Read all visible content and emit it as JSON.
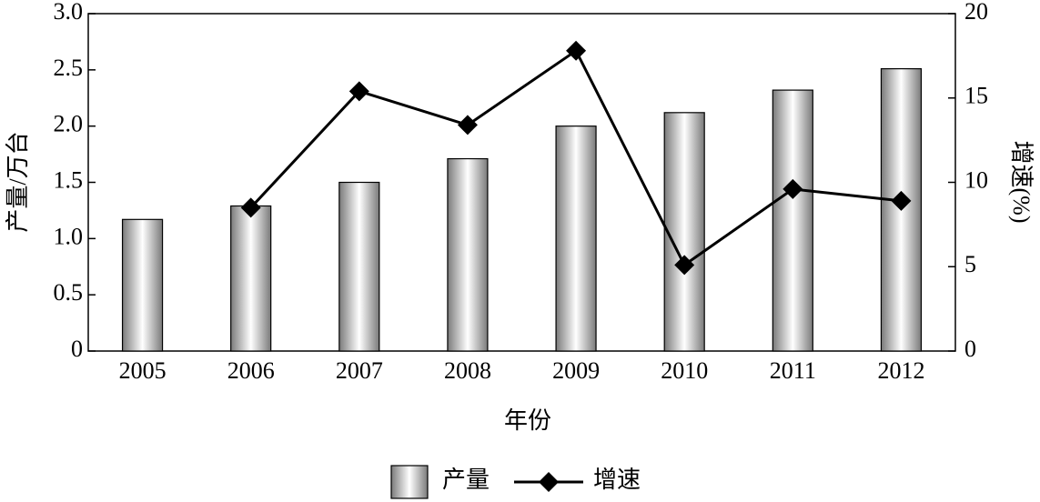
{
  "chart_data": {
    "type": "bar-line",
    "x_label": "年份",
    "y_label": "产量/万台",
    "y2_label": "增速(%)",
    "categories": [
      "2005",
      "2006",
      "2007",
      "2008",
      "2009",
      "2010",
      "2011",
      "2012"
    ],
    "series": [
      {
        "name": "产量",
        "type": "bar",
        "color": "#7a7a7a",
        "values": [
          1.17,
          1.29,
          1.5,
          1.71,
          2.0,
          2.12,
          2.32,
          2.51
        ]
      },
      {
        "name": "增速",
        "type": "line",
        "axis": "y2",
        "color": "#000000",
        "values": [
          null,
          8.5,
          15.4,
          13.4,
          17.8,
          5.1,
          9.6,
          8.9
        ]
      }
    ],
    "ylim": [
      0,
      3
    ],
    "yticks": [
      0,
      0.5,
      {
        "value": 1,
        "label": "1.0"
      },
      1.5,
      {
        "value": 2,
        "label": "2.0"
      },
      2.5,
      {
        "value": 3,
        "label": "3.0"
      }
    ],
    "y2lim": [
      0,
      20
    ],
    "y2ticks": [
      0,
      5,
      10,
      15,
      20
    ],
    "legend": "bottom"
  }
}
